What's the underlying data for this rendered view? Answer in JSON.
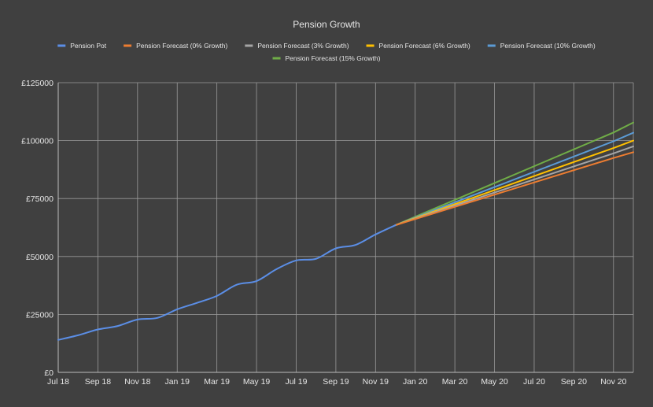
{
  "chart_data": {
    "type": "line",
    "title": "Pension Growth",
    "xlabel": "",
    "ylabel": "",
    "x_ticks": [
      "Jul 18",
      "Sep 18",
      "Nov 18",
      "Jan 19",
      "Mar 19",
      "May 19",
      "Jul 19",
      "Sep 19",
      "Nov 19",
      "Jan 20",
      "Mar 20",
      "May 20",
      "Jul 20",
      "Sep 20",
      "Nov 20"
    ],
    "y_ticks": [
      "£0",
      "£25000",
      "£50000",
      "£75000",
      "£100000",
      "£125000"
    ],
    "ylim": [
      0,
      125000
    ],
    "grid": true,
    "legend_position": "top",
    "x_months": [
      "Jul 18",
      "Aug 18",
      "Sep 18",
      "Oct 18",
      "Nov 18",
      "Dec 18",
      "Jan 19",
      "Feb 19",
      "Mar 19",
      "Apr 19",
      "May 19",
      "Jun 19",
      "Jul 19",
      "Aug 19",
      "Sep 19",
      "Oct 19",
      "Nov 19",
      "Dec 19",
      "Jan 20",
      "Feb 20",
      "Mar 20",
      "Apr 20",
      "May 20",
      "Jun 20",
      "Jul 20",
      "Aug 20",
      "Sep 20",
      "Oct 20",
      "Nov 20",
      "Dec 20"
    ],
    "series": [
      {
        "name": "Pension Pot",
        "color": "#5b8ee6",
        "x": [
          "Jul 18",
          "Aug 18",
          "Sep 18",
          "Oct 18",
          "Nov 18",
          "Dec 18",
          "Jan 19",
          "Feb 19",
          "Mar 19",
          "Apr 19",
          "May 19",
          "Jun 19",
          "Jul 19",
          "Aug 19",
          "Sep 19",
          "Oct 19",
          "Nov 19",
          "Dec 19"
        ],
        "values": [
          14000,
          16000,
          18500,
          20000,
          22800,
          23500,
          27200,
          30000,
          33000,
          37800,
          39400,
          44500,
          48300,
          49000,
          53500,
          55000,
          59500,
          63500
        ]
      },
      {
        "name": "Pension Forecast (0% Growth)",
        "color": "#ed7d31",
        "x": [
          "Dec 19",
          "Nov 20",
          "Dec 20"
        ],
        "values": [
          63500,
          92500,
          95000
        ]
      },
      {
        "name": "Pension Forecast (3% Growth)",
        "color": "#a5a5a5",
        "x": [
          "Dec 19",
          "Nov 20",
          "Dec 20"
        ],
        "values": [
          63500,
          94500,
          97500
        ]
      },
      {
        "name": "Pension Forecast (6% Growth)",
        "color": "#ffc000",
        "x": [
          "Dec 19",
          "Nov 20",
          "Dec 20"
        ],
        "values": [
          63500,
          96800,
          100000
        ]
      },
      {
        "name": "Pension Forecast (10% Growth)",
        "color": "#5b9bd5",
        "x": [
          "Dec 19",
          "Nov 20",
          "Dec 20"
        ],
        "values": [
          63500,
          99700,
          103400
        ]
      },
      {
        "name": "Pension Forecast (15% Growth)",
        "color": "#70ad47",
        "x": [
          "Dec 19",
          "Nov 20",
          "Dec 20"
        ],
        "values": [
          63500,
          103500,
          107800
        ]
      }
    ]
  }
}
